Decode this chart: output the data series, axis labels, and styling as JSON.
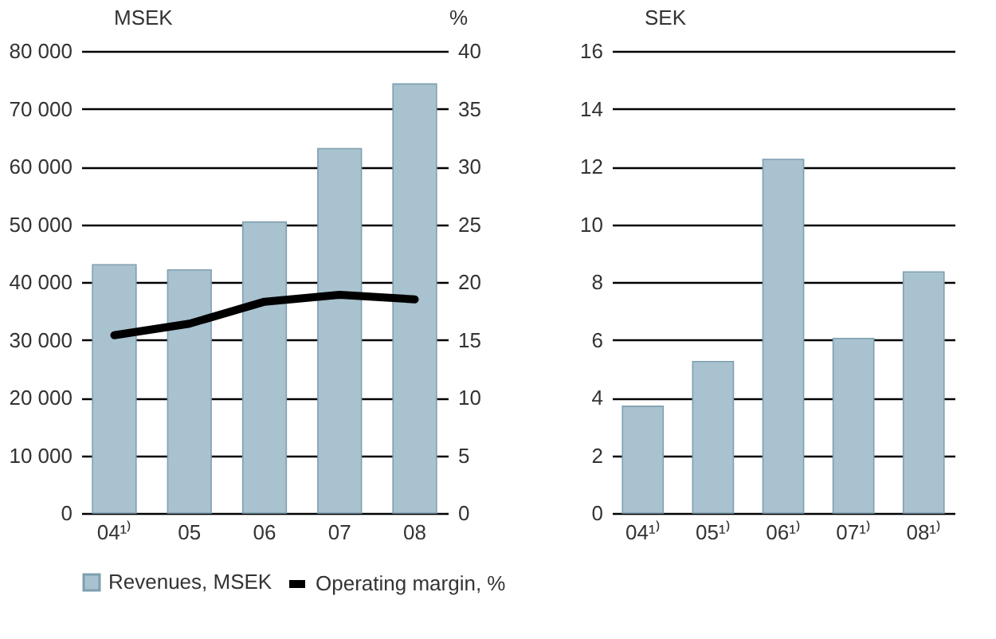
{
  "chart_data": [
    {
      "type": "bar",
      "categories": [
        "04¹⁾",
        "05",
        "06",
        "07",
        "08"
      ],
      "ylabel": "MSEK",
      "y2label": "%",
      "ylim": [
        0,
        80000
      ],
      "yticks": [
        {
          "value": 0,
          "label": "0"
        },
        {
          "value": 10000,
          "label": "10 000"
        },
        {
          "value": 20000,
          "label": "20 000"
        },
        {
          "value": 30000,
          "label": "30 000"
        },
        {
          "value": 40000,
          "label": "40 000"
        },
        {
          "value": 50000,
          "label": "50 000"
        },
        {
          "value": 60000,
          "label": "60 000"
        },
        {
          "value": 70000,
          "label": "70 000"
        },
        {
          "value": 80000,
          "label": "80 000"
        }
      ],
      "y2lim": [
        0,
        40
      ],
      "y2ticks": [
        0,
        5,
        10,
        15,
        20,
        25,
        30,
        35,
        40
      ],
      "grid": "y",
      "legend": "bottom",
      "series": [
        {
          "name": "Revenues, MSEK",
          "color": "#a9c2cf",
          "values": [
            43000,
            42100,
            50400,
            63100,
            74300
          ]
        },
        {
          "name": "Operating margin, %",
          "type": "line",
          "axis": "y2",
          "color": "#000000",
          "values": [
            15.4,
            16.4,
            18.3,
            18.9,
            18.5
          ]
        }
      ]
    },
    {
      "type": "bar",
      "categories": [
        "04¹⁾",
        "05¹⁾",
        "06¹⁾",
        "07¹⁾",
        "08¹⁾"
      ],
      "ylabel": "SEK",
      "ylim": [
        0,
        16
      ],
      "yticks": [
        0,
        2,
        4,
        6,
        8,
        10,
        12,
        14,
        16
      ],
      "grid": "y",
      "legend": false,
      "series": [
        {
          "color": "#a9c2cf",
          "values": [
            3.7,
            5.25,
            12.25,
            6.05,
            8.35
          ]
        }
      ]
    }
  ]
}
